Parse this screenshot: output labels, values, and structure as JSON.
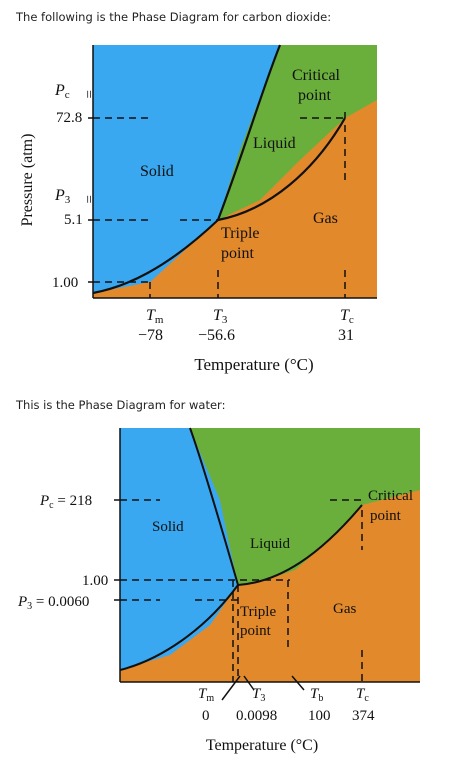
{
  "captions": {
    "co2": "The following is the Phase Diagram for carbon dioxide:",
    "water": "This is the Phase Diagram for water:"
  },
  "colors": {
    "solid": "#3aa8f0",
    "liquid": "#6aae3c",
    "gas": "#e2892c",
    "line": "#111111"
  },
  "co2": {
    "y_axis_label": "Pressure (atm)",
    "pc_label": "P",
    "pc_sub": "c",
    "pc_eq": "=",
    "pc_value": "72.8",
    "p3_label": "P",
    "p3_sub": "3",
    "p3_eq": "=",
    "p3_value": "5.1",
    "p1_value": "1.00",
    "region_solid": "Solid",
    "region_liquid": "Liquid",
    "region_gas": "Gas",
    "critical_line1": "Critical",
    "critical_line2": "point",
    "triple_line1": "Triple",
    "triple_line2": "point",
    "tm_label": "T",
    "tm_sub": "m",
    "tm_value": "−78",
    "t3_label": "T",
    "t3_sub": "3",
    "t3_value": "−56.6",
    "tc_label": "T",
    "tc_sub": "c",
    "tc_value": "31",
    "x_axis_label": "Temperature (°C)"
  },
  "water": {
    "pc_label": "P",
    "pc_sub": "c",
    "pc_eq": "=",
    "pc_value": "218",
    "p1_value": "1.00",
    "p3_label": "P",
    "p3_sub": "3",
    "p3_eq": "=",
    "p3_value": "0.0060",
    "region_solid": "Solid",
    "region_liquid": "Liquid",
    "region_gas": "Gas",
    "critical_line1": "Critical",
    "critical_line2": "point",
    "triple_line1": "Triple",
    "triple_line2": "point",
    "tm_label": "T",
    "tm_sub": "m",
    "tm_value": "0",
    "t3_label": "T",
    "t3_sub": "3",
    "t3_value": "0.0098",
    "tb_label": "T",
    "tb_sub": "b",
    "tb_value": "100",
    "tc_label": "T",
    "tc_sub": "c",
    "tc_value": "374",
    "x_axis_label": "Temperature (°C)"
  }
}
